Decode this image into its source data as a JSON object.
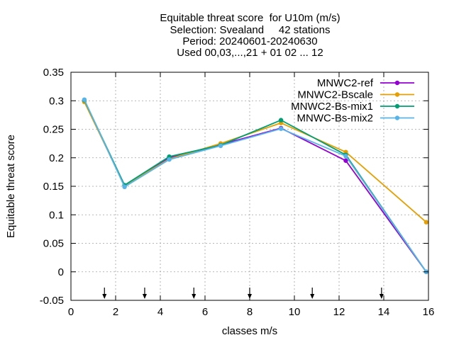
{
  "chart_data": {
    "type": "line",
    "title_lines": [
      "Equitable threat score  for U10m (m/s)",
      "Selection: Svealand     42 stations",
      "Period: 20240601-20240630",
      "Used 00,03,...,21 + 01 02 ... 12"
    ],
    "xlabel": "classes m/s",
    "ylabel": "Equitable threat score",
    "xlim": [
      0,
      16
    ],
    "ylim": [
      -0.05,
      0.35
    ],
    "xticks": [
      0,
      2,
      4,
      6,
      8,
      10,
      12,
      14,
      16
    ],
    "yticks": [
      -0.05,
      0,
      0.05,
      0.1,
      0.15,
      0.2,
      0.25,
      0.3,
      0.35
    ],
    "ytick_labels": [
      "-0.05",
      "0",
      "0.05",
      "0.1",
      "0.15",
      "0.2",
      "0.25",
      "0.3",
      "0.35"
    ],
    "grid": true,
    "legend_position": "top-right",
    "class_boundary_arrows": [
      1.5,
      3.3,
      5.5,
      8.0,
      10.8,
      13.9
    ],
    "series": [
      {
        "name": "MNWC2-ref",
        "color": "#9400d3",
        "x": [
          0.6,
          2.4,
          4.4,
          6.7,
          9.4,
          12.3,
          15.9
        ],
        "y": [
          0.3,
          0.151,
          0.2,
          0.223,
          0.252,
          0.195,
          0.0
        ]
      },
      {
        "name": "MNWC2-Bscale",
        "color": "#e69f00",
        "x": [
          0.6,
          2.4,
          4.4,
          6.7,
          9.4,
          12.3,
          15.9
        ],
        "y": [
          0.298,
          0.151,
          0.198,
          0.225,
          0.261,
          0.21,
          0.087
        ]
      },
      {
        "name": "MNWC2-Bs-mix1",
        "color": "#009e73",
        "x": [
          0.6,
          2.4,
          4.4,
          6.7,
          9.4,
          12.3,
          15.9
        ],
        "y": [
          0.301,
          0.152,
          0.202,
          0.222,
          0.266,
          0.205,
          0.0
        ]
      },
      {
        "name": "MNWC-Bs-mix2",
        "color": "#56b4e9",
        "x": [
          0.6,
          2.4,
          4.4,
          6.7,
          9.4,
          12.3,
          15.9
        ],
        "y": [
          0.302,
          0.149,
          0.197,
          0.221,
          0.251,
          0.203,
          0.0
        ]
      }
    ]
  }
}
